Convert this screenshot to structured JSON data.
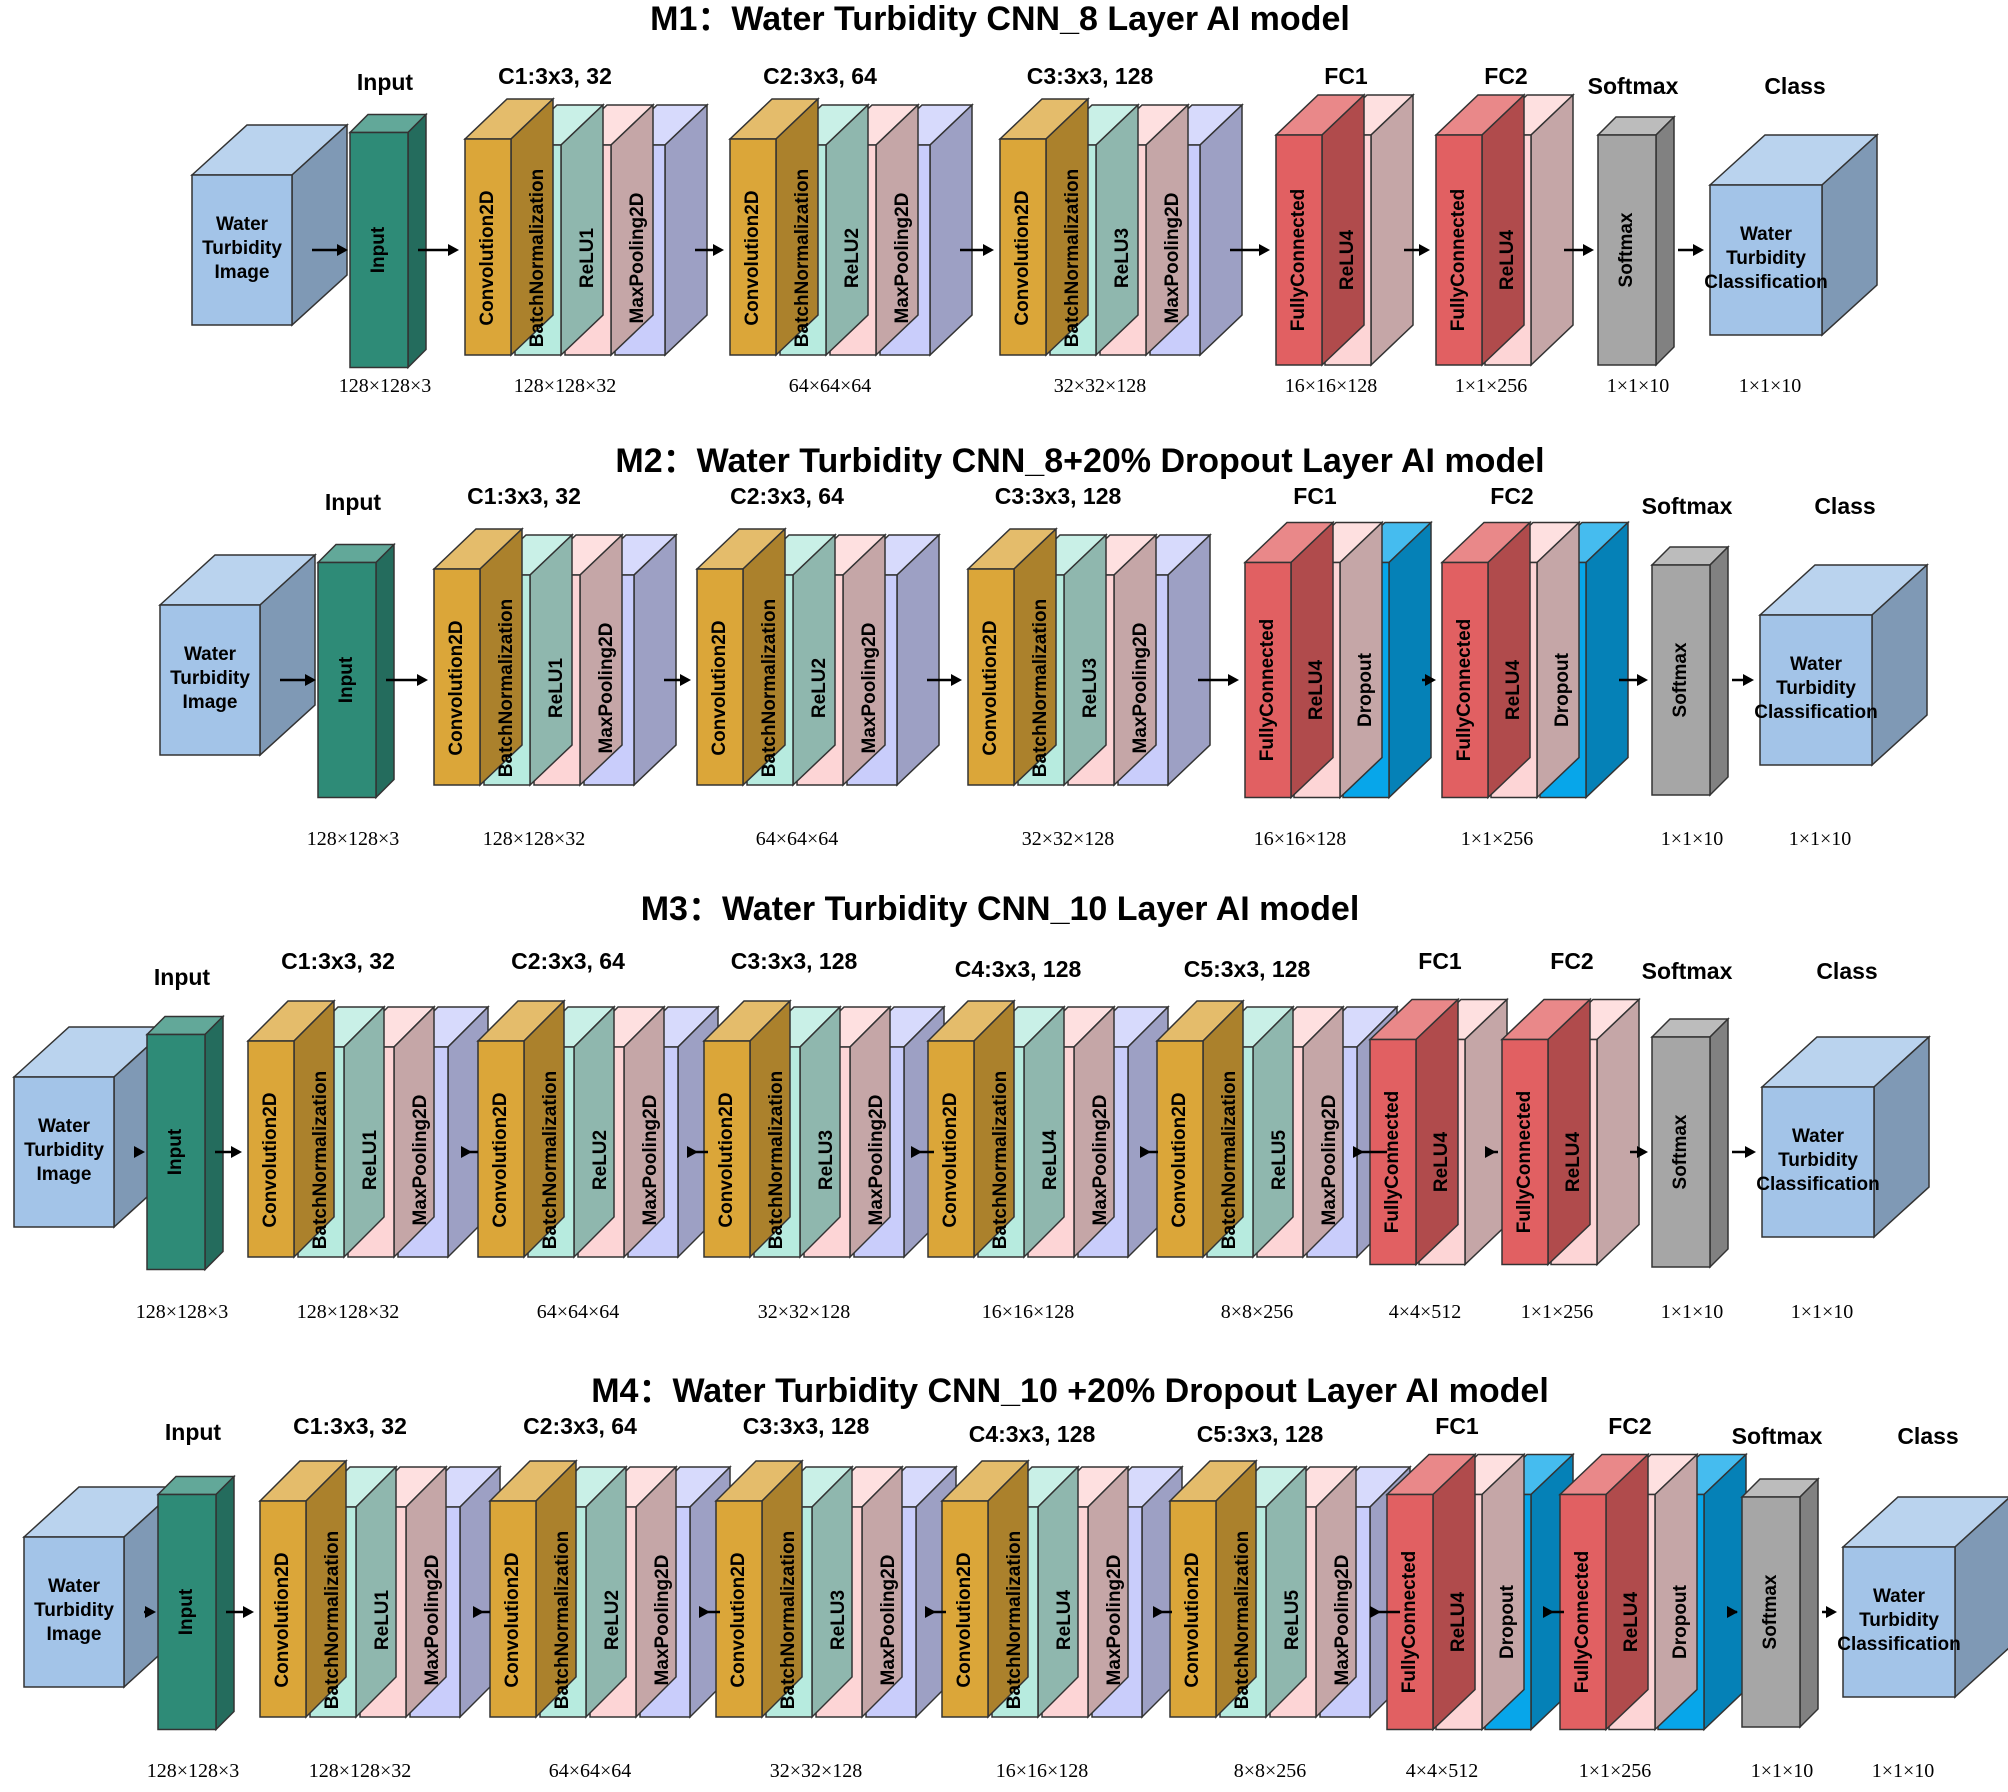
{
  "colors": {
    "conv": "#dba639",
    "bn": "#b7ebdf",
    "relu": "#fdd5d6",
    "pool": "#c9cdfb",
    "fc": "#e16062",
    "dropout": "#07a6ea",
    "softmax": "#a6a6a6",
    "input": "#2e8b77",
    "image": "#a3c4e8",
    "outline": "#333333"
  },
  "icons": {
    "cube": "3d-cube-icon",
    "arrow": "arrow-right-icon"
  },
  "models": [
    {
      "title": "M1：Water Turbidity CNN_8 Layer AI model",
      "image_label": [
        "Water",
        "Turbidity",
        "Image"
      ],
      "class_label": [
        "Water",
        "Turbidity",
        "Classification"
      ],
      "input_header": "Input",
      "input_block": "Input",
      "input_dim": "128×128×3",
      "conv_groups": [
        {
          "header": "C1:3x3, 32",
          "layers": [
            "Convolution2D",
            "BatchNormalization",
            "ReLU1",
            "MaxPooling2D"
          ],
          "dim": "128×128×32"
        },
        {
          "header": "C2:3x3, 64",
          "layers": [
            "Convolution2D",
            "BatchNormalization",
            "ReLU2",
            "MaxPooling2D"
          ],
          "dim": "64×64×64"
        },
        {
          "header": "C3:3x3, 128",
          "layers": [
            "Convolution2D",
            "BatchNormalization",
            "ReLU3",
            "MaxPooling2D"
          ],
          "dim": "32×32×128"
        }
      ],
      "fc_groups": [
        {
          "header": "FC1",
          "layers": [
            "FullyConnected",
            "ReLU4"
          ],
          "dim": "16×16×128"
        },
        {
          "header": "FC2",
          "layers": [
            "FullyConnected",
            "ReLU4"
          ],
          "dim": "1×1×256"
        }
      ],
      "softmax_header": "Softmax",
      "softmax_block": "Softmax",
      "softmax_dim": "1×1×10",
      "class_header": "Class",
      "class_dim": "1×1×10"
    },
    {
      "title": "M2：Water Turbidity CNN_8+20% Dropout Layer AI model",
      "image_label": [
        "Water",
        "Turbidity",
        "Image"
      ],
      "class_label": [
        "Water",
        "Turbidity",
        "Classification"
      ],
      "input_header": "Input",
      "input_block": "Input",
      "input_dim": "128×128×3",
      "conv_groups": [
        {
          "header": "C1:3x3, 32",
          "layers": [
            "Convolution2D",
            "BatchNormalization",
            "ReLU1",
            "MaxPooling2D"
          ],
          "dim": "128×128×32"
        },
        {
          "header": "C2:3x3, 64",
          "layers": [
            "Convolution2D",
            "BatchNormalization",
            "ReLU2",
            "MaxPooling2D"
          ],
          "dim": "64×64×64"
        },
        {
          "header": "C3:3x3, 128",
          "layers": [
            "Convolution2D",
            "BatchNormalization",
            "ReLU3",
            "MaxPooling2D"
          ],
          "dim": "32×32×128"
        }
      ],
      "fc_groups": [
        {
          "header": "FC1",
          "layers": [
            "FullyConnected",
            "ReLU4",
            "Dropout"
          ],
          "dim": "16×16×128"
        },
        {
          "header": "FC2",
          "layers": [
            "FullyConnected",
            "ReLU4",
            "Dropout"
          ],
          "dim": "1×1×256"
        }
      ],
      "softmax_header": "Softmax",
      "softmax_block": "Softmax",
      "softmax_dim": "1×1×10",
      "class_header": "Class",
      "class_dim": "1×1×10"
    },
    {
      "title": "M3：Water Turbidity CNN_10 Layer AI model",
      "image_label": [
        "Water",
        "Turbidity",
        "Image"
      ],
      "class_label": [
        "Water",
        "Turbidity",
        "Classification"
      ],
      "input_header": "Input",
      "input_block": "Input",
      "input_dim": "128×128×3",
      "conv_groups": [
        {
          "header": "C1:3x3, 32",
          "layers": [
            "Convolution2D",
            "BatchNormalization",
            "ReLU1",
            "MaxPooling2D"
          ],
          "dim": "128×128×32"
        },
        {
          "header": "C2:3x3, 64",
          "layers": [
            "Convolution2D",
            "BatchNormalization",
            "ReLU2",
            "MaxPooling2D"
          ],
          "dim": "64×64×64"
        },
        {
          "header": "C3:3x3, 128",
          "layers": [
            "Convolution2D",
            "BatchNormalization",
            "ReLU3",
            "MaxPooling2D"
          ],
          "dim": "32×32×128"
        },
        {
          "header": "C4:3x3, 128",
          "layers": [
            "Convolution2D",
            "BatchNormalization",
            "ReLU4",
            "MaxPooling2D"
          ],
          "dim": "16×16×128"
        },
        {
          "header": "C5:3x3, 128",
          "layers": [
            "Convolution2D",
            "BatchNormalization",
            "ReLU5",
            "MaxPooling2D"
          ],
          "dim": "8×8×256"
        }
      ],
      "fc_groups": [
        {
          "header": "FC1",
          "layers": [
            "FullyConnected",
            "ReLU4"
          ],
          "dim": "4×4×512"
        },
        {
          "header": "FC2",
          "layers": [
            "FullyConnected",
            "ReLU4"
          ],
          "dim": "1×1×256"
        }
      ],
      "softmax_header": "Softmax",
      "softmax_block": "Softmax",
      "softmax_dim": "1×1×10",
      "class_header": "Class",
      "class_dim": "1×1×10"
    },
    {
      "title": "M4：Water Turbidity CNN_10 +20% Dropout Layer AI model",
      "image_label": [
        "Water",
        "Turbidity",
        "Image"
      ],
      "class_label": [
        "Water",
        "Turbidity",
        "Classification"
      ],
      "input_header": "Input",
      "input_block": "Input",
      "input_dim": "128×128×3",
      "conv_groups": [
        {
          "header": "C1:3x3, 32",
          "layers": [
            "Convolution2D",
            "BatchNormalization",
            "ReLU1",
            "MaxPooling2D"
          ],
          "dim": "128×128×32"
        },
        {
          "header": "C2:3x3, 64",
          "layers": [
            "Convolution2D",
            "BatchNormalization",
            "ReLU2",
            "MaxPooling2D"
          ],
          "dim": "64×64×64"
        },
        {
          "header": "C3:3x3, 128",
          "layers": [
            "Convolution2D",
            "BatchNormalization",
            "ReLU3",
            "MaxPooling2D"
          ],
          "dim": "32×32×128"
        },
        {
          "header": "C4:3x3, 128",
          "layers": [
            "Convolution2D",
            "BatchNormalization",
            "ReLU4",
            "MaxPooling2D"
          ],
          "dim": "16×16×128"
        },
        {
          "header": "C5:3x3, 128",
          "layers": [
            "Convolution2D",
            "BatchNormalization",
            "ReLU5",
            "MaxPooling2D"
          ],
          "dim": "8×8×256"
        }
      ],
      "fc_groups": [
        {
          "header": "FC1",
          "layers": [
            "FullyConnected",
            "ReLU4",
            "Dropout"
          ],
          "dim": "4×4×512"
        },
        {
          "header": "FC2",
          "layers": [
            "FullyConnected",
            "ReLU4",
            "Dropout"
          ],
          "dim": "1×1×256"
        }
      ],
      "softmax_header": "Softmax",
      "softmax_block": "Softmax",
      "softmax_dim": "1×1×10",
      "class_header": "Class",
      "class_dim": "1×1×10"
    }
  ]
}
